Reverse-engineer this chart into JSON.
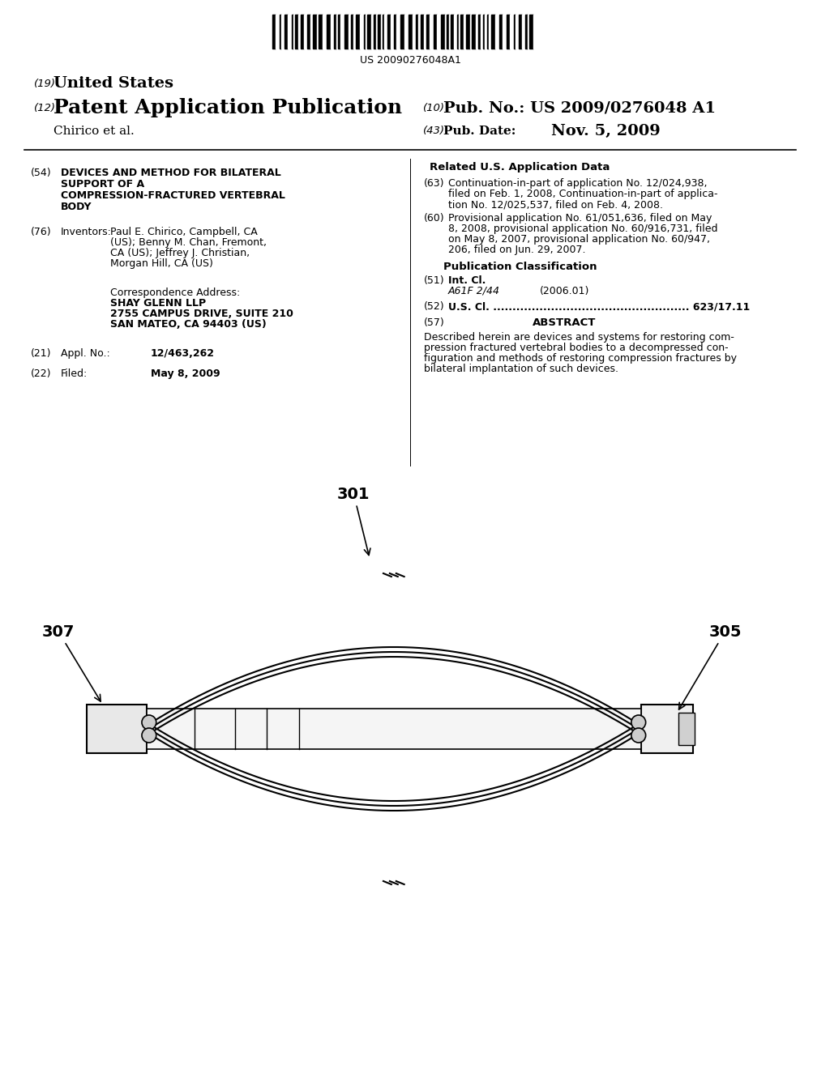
{
  "background_color": "#ffffff",
  "barcode_text": "US 20090276048A1",
  "header_left_19": "(19)",
  "header_left_19_text": "United States",
  "header_left_12": "(12)",
  "header_left_12_text": "Patent Application Publication",
  "header_right_10": "(10)",
  "header_right_10_text": "Pub. No.:",
  "header_right_10_val": "US 2009/0276048 A1",
  "header_right_43": "(43)",
  "header_right_43_text": "Pub. Date:",
  "header_right_43_val": "Nov. 5, 2009",
  "header_inventor": "Chirico et al.",
  "section54_label": "(54)",
  "section54_text": "DEVICES AND METHOD FOR BILATERAL\nSUPPORT OF A\nCOMPRESSION-FRACTURED VERTEBRAL\nBODY",
  "section76_label": "(76)",
  "section76_title": "Inventors:",
  "section76_text": "Paul E. Chirico, Campbell, CA\n(US); Benny M. Chan, Fremont,\nCA (US); Jeffrey J. Christian,\nMorgan Hill, CA (US)",
  "corr_title": "Correspondence Address:",
  "corr_line1": "SHAY GLENN LLP",
  "corr_line2": "2755 CAMPUS DRIVE, SUITE 210",
  "corr_line3": "SAN MATEO, CA 94403 (US)",
  "section21_label": "(21)",
  "section21_title": "Appl. No.:",
  "section21_val": "12/463,262",
  "section22_label": "(22)",
  "section22_title": "Filed:",
  "section22_val": "May 8, 2009",
  "right_related_title": "Related U.S. Application Data",
  "section63_label": "(63)",
  "section63_text": "Continuation-in-part of application No. 12/024,938,\nfiled on Feb. 1, 2008, Continuation-in-part of applica-\ntion No. 12/025,537, filed on Feb. 4, 2008.",
  "section60_label": "(60)",
  "section60_text": "Provisional application No. 61/051,636, filed on May\n8, 2008, provisional application No. 60/916,731, filed\non May 8, 2007, provisional application No. 60/947,\n206, filed on Jun. 29, 2007.",
  "pub_class_title": "Publication Classification",
  "section51_label": "(51)",
  "section51_title": "Int. Cl.",
  "section51_code": "A61F 2/44",
  "section51_year": "(2006.01)",
  "section52_label": "(52)",
  "section52_text": "U.S. Cl. ................................................... 623/17.11",
  "section57_label": "(57)",
  "section57_title": "ABSTRACT",
  "section57_text": "Described herein are devices and systems for restoring com-\npression fractured vertebral bodies to a decompressed con-\nfiguration and methods of restoring compression fractures by\nbilateral implantation of such devices.",
  "diagram_label_307": "307",
  "diagram_label_301": "301",
  "diagram_label_305": "305"
}
